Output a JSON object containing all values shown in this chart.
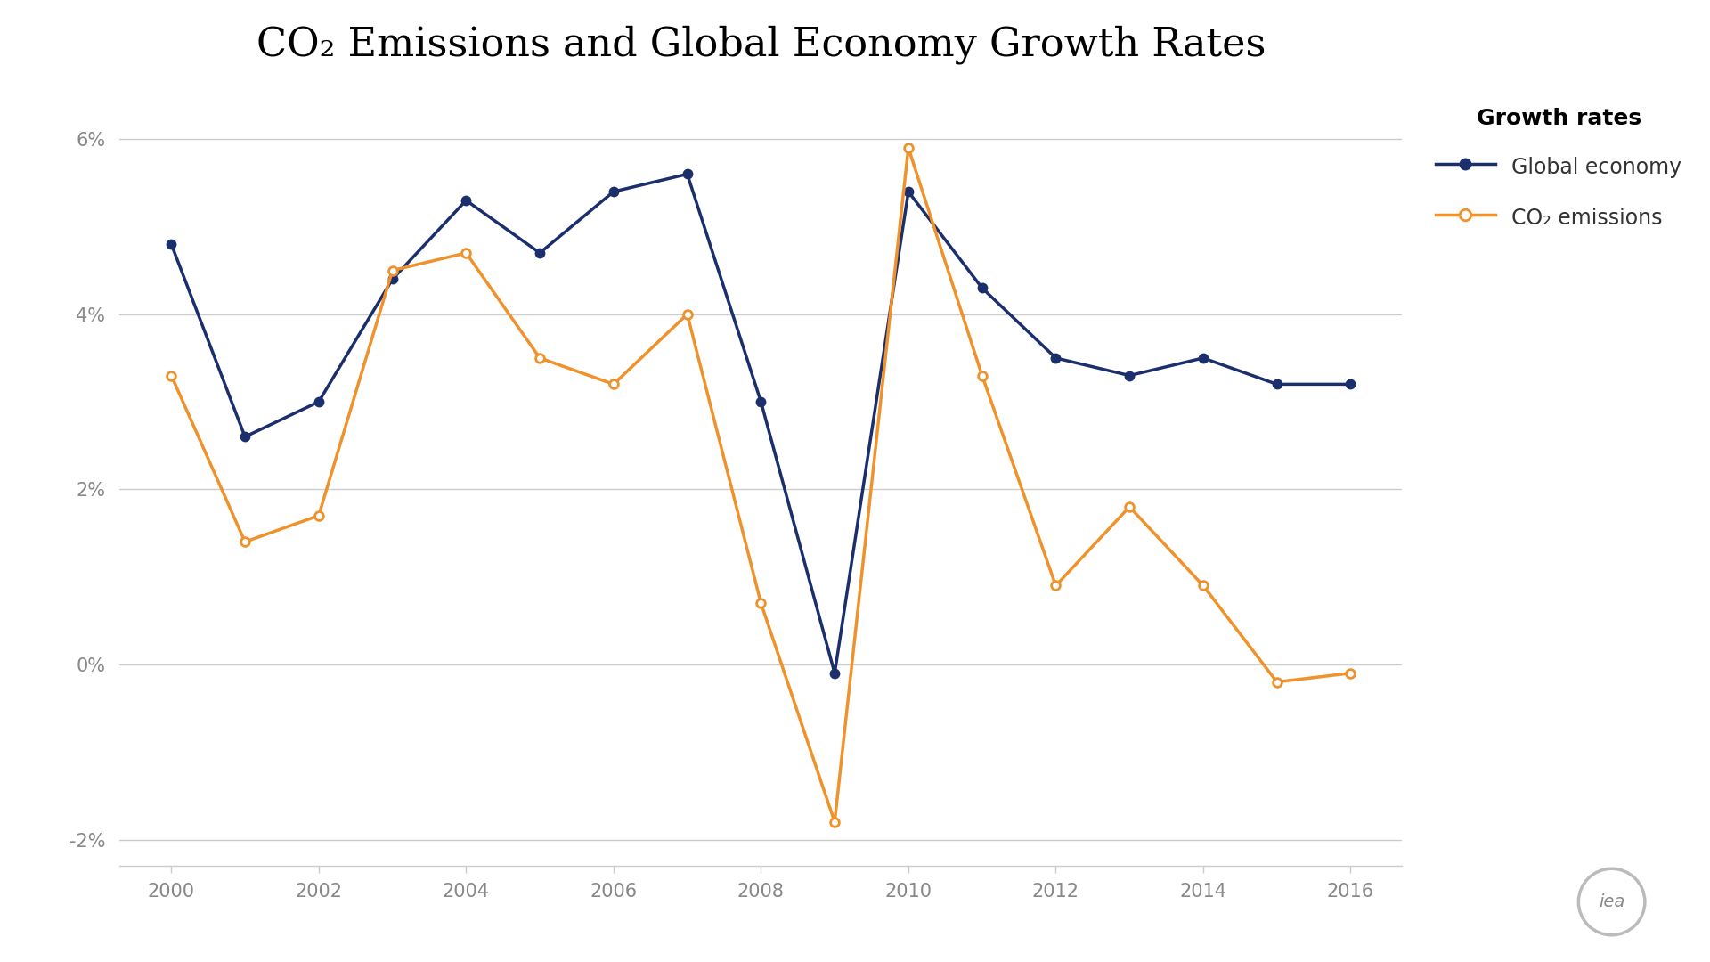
{
  "title": "CO₂ Emissions and Global Economy Growth Rates",
  "years": [
    2000,
    2001,
    2002,
    2003,
    2004,
    2005,
    2006,
    2007,
    2008,
    2009,
    2010,
    2011,
    2012,
    2013,
    2014,
    2015,
    2016
  ],
  "global_economy": [
    4.8,
    2.6,
    3.0,
    4.4,
    5.3,
    4.7,
    5.4,
    5.6,
    3.0,
    -0.1,
    5.4,
    4.3,
    3.5,
    3.3,
    3.5,
    3.2,
    3.2
  ],
  "co2_emissions": [
    3.3,
    1.4,
    1.7,
    4.5,
    4.7,
    3.5,
    3.2,
    4.0,
    0.7,
    -1.8,
    5.9,
    3.3,
    0.9,
    1.8,
    0.9,
    -0.2,
    -0.1
  ],
  "economy_color": "#1b2f6d",
  "co2_color": "#f0922b",
  "legend_title": "Growth rates",
  "legend_economy": "Global economy",
  "legend_co2": "CO₂ emissions",
  "ylim_min": -0.023,
  "ylim_max": 0.066,
  "yticks": [
    -0.02,
    0.0,
    0.02,
    0.04,
    0.06
  ],
  "ytick_labels": [
    "-2%",
    "0%",
    "2%",
    "4%",
    "6%"
  ],
  "xlim_min": 1999.3,
  "xlim_max": 2016.7,
  "xticks": [
    2000,
    2002,
    2004,
    2006,
    2008,
    2010,
    2012,
    2014,
    2016
  ],
  "background_color": "#ffffff",
  "grid_color": "#cccccc",
  "title_fontsize": 32,
  "axis_fontsize": 15,
  "tick_color": "#888888",
  "legend_fontsize": 17,
  "legend_title_fontsize": 18
}
